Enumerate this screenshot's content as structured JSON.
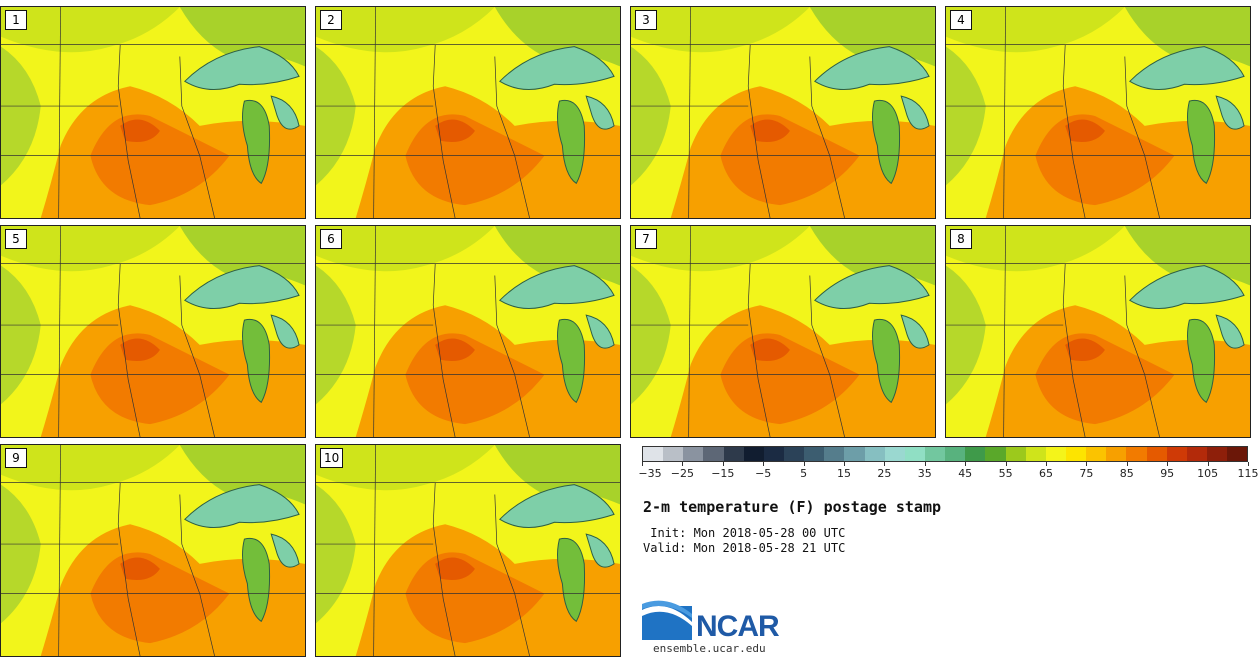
{
  "stamps": [
    {
      "label": "1"
    },
    {
      "label": "2"
    },
    {
      "label": "3"
    },
    {
      "label": "4"
    },
    {
      "label": "5"
    },
    {
      "label": "6"
    },
    {
      "label": "7"
    },
    {
      "label": "8"
    },
    {
      "label": "9"
    },
    {
      "label": "10"
    }
  ],
  "colorbar": {
    "colors": [
      "#dfe3e8",
      "#b9bfc7",
      "#8a93a0",
      "#5d6776",
      "#2e3a4b",
      "#111d30",
      "#1b2b43",
      "#2b4258",
      "#3c5d70",
      "#557d8c",
      "#6d9ea8",
      "#86bfc1",
      "#9ad8d0",
      "#90dfc4",
      "#72c79f",
      "#58b27e",
      "#3f9a4a",
      "#5aa82a",
      "#9cc91c",
      "#cfe41b",
      "#f4f41a",
      "#fde400",
      "#fbc300",
      "#f7a000",
      "#f27b00",
      "#e55a00",
      "#cf3a06",
      "#b32a0a",
      "#8e1f0a",
      "#6b1708"
    ],
    "tick_labels": [
      "−35",
      "−25",
      "−15",
      "−5",
      "5",
      "15",
      "25",
      "35",
      "45",
      "55",
      "65",
      "75",
      "85",
      "95",
      "105",
      "115"
    ]
  },
  "title": "2-m temperature (F) postage stamp",
  "init": " Init: Mon 2018-05-28 00 UTC",
  "valid": "Valid: Mon 2018-05-28 21 UTC",
  "logo_text": "NCAR",
  "website": "ensemble.ucar.edu"
}
